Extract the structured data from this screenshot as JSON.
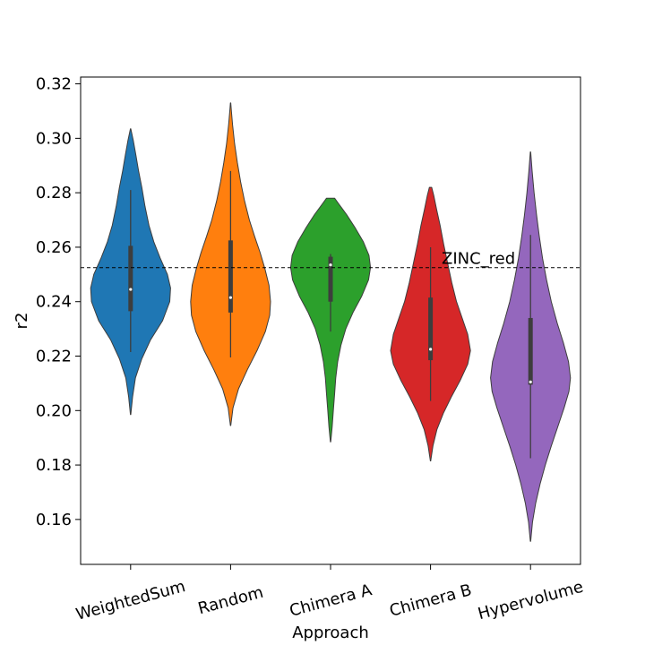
{
  "chart_data": {
    "type": "violin",
    "xlabel": "Approach",
    "ylabel": "r2",
    "ylim": [
      0.1435,
      0.3225
    ],
    "yticks": [
      "0.16",
      "0.18",
      "0.20",
      "0.22",
      "0.24",
      "0.26",
      "0.28",
      "0.30",
      "0.32"
    ],
    "ytick_values": [
      0.16,
      0.18,
      0.2,
      0.22,
      0.24,
      0.26,
      0.28,
      0.3,
      0.32
    ],
    "categories": [
      "WeightedSum",
      "Random",
      "Chimera A",
      "Chimera B",
      "Hypervolume"
    ],
    "xtick_rotation_deg": -15,
    "grid": false,
    "legend": "none",
    "reference_line": {
      "label": "ZINC_red",
      "value": 0.2525,
      "style": "dashed"
    },
    "series": [
      {
        "category": "WeightedSum",
        "color": "#1f77b4",
        "min": 0.1985,
        "max": 0.3035,
        "whisker_low": 0.2215,
        "whisker_high": 0.281,
        "q1": 0.2365,
        "median": 0.2445,
        "q3": 0.2605,
        "profile": [
          [
            0.1985,
            0.005
          ],
          [
            0.205,
            0.05
          ],
          [
            0.212,
            0.12
          ],
          [
            0.219,
            0.28
          ],
          [
            0.226,
            0.5
          ],
          [
            0.233,
            0.8
          ],
          [
            0.24,
            0.98
          ],
          [
            0.245,
            1.0
          ],
          [
            0.25,
            0.92
          ],
          [
            0.256,
            0.74
          ],
          [
            0.262,
            0.58
          ],
          [
            0.268,
            0.46
          ],
          [
            0.275,
            0.36
          ],
          [
            0.282,
            0.28
          ],
          [
            0.288,
            0.2
          ],
          [
            0.294,
            0.13
          ],
          [
            0.299,
            0.07
          ],
          [
            0.3035,
            0.005
          ]
        ]
      },
      {
        "category": "Random",
        "color": "#ff7f0e",
        "min": 0.1945,
        "max": 0.313,
        "whisker_low": 0.2195,
        "whisker_high": 0.288,
        "q1": 0.236,
        "median": 0.2415,
        "q3": 0.2625,
        "profile": [
          [
            0.1945,
            0.005
          ],
          [
            0.201,
            0.06
          ],
          [
            0.208,
            0.2
          ],
          [
            0.215,
            0.42
          ],
          [
            0.222,
            0.66
          ],
          [
            0.229,
            0.87
          ],
          [
            0.235,
            0.98
          ],
          [
            0.24,
            1.0
          ],
          [
            0.246,
            0.96
          ],
          [
            0.252,
            0.86
          ],
          [
            0.258,
            0.74
          ],
          [
            0.264,
            0.6
          ],
          [
            0.27,
            0.47
          ],
          [
            0.277,
            0.35
          ],
          [
            0.284,
            0.25
          ],
          [
            0.291,
            0.17
          ],
          [
            0.298,
            0.1
          ],
          [
            0.305,
            0.05
          ],
          [
            0.31,
            0.02
          ],
          [
            0.313,
            0.005
          ]
        ]
      },
      {
        "category": "Chimera A",
        "color": "#2ca02c",
        "min": 0.1885,
        "max": 0.278,
        "whisker_low": 0.229,
        "whisker_high": 0.2575,
        "q1": 0.24,
        "median": 0.2535,
        "q3": 0.2565,
        "profile": [
          [
            0.1885,
            0.005
          ],
          [
            0.194,
            0.04
          ],
          [
            0.2,
            0.07
          ],
          [
            0.206,
            0.1
          ],
          [
            0.212,
            0.13
          ],
          [
            0.218,
            0.18
          ],
          [
            0.224,
            0.26
          ],
          [
            0.23,
            0.38
          ],
          [
            0.236,
            0.56
          ],
          [
            0.242,
            0.78
          ],
          [
            0.248,
            0.95
          ],
          [
            0.2525,
            1.0
          ],
          [
            0.257,
            0.96
          ],
          [
            0.262,
            0.82
          ],
          [
            0.267,
            0.62
          ],
          [
            0.272,
            0.4
          ],
          [
            0.276,
            0.2
          ],
          [
            0.278,
            0.1
          ]
        ]
      },
      {
        "category": "Chimera B",
        "color": "#d62728",
        "min": 0.1815,
        "max": 0.282,
        "whisker_low": 0.2035,
        "whisker_high": 0.26,
        "q1": 0.2185,
        "median": 0.2225,
        "q3": 0.2415,
        "profile": [
          [
            0.1815,
            0.005
          ],
          [
            0.187,
            0.06
          ],
          [
            0.193,
            0.16
          ],
          [
            0.199,
            0.32
          ],
          [
            0.205,
            0.52
          ],
          [
            0.211,
            0.74
          ],
          [
            0.217,
            0.93
          ],
          [
            0.222,
            1.0
          ],
          [
            0.228,
            0.93
          ],
          [
            0.234,
            0.79
          ],
          [
            0.24,
            0.65
          ],
          [
            0.247,
            0.53
          ],
          [
            0.254,
            0.43
          ],
          [
            0.261,
            0.33
          ],
          [
            0.268,
            0.24
          ],
          [
            0.274,
            0.15
          ],
          [
            0.279,
            0.08
          ],
          [
            0.282,
            0.03
          ]
        ]
      },
      {
        "category": "Hypervolume",
        "color": "#9467bd",
        "min": 0.152,
        "max": 0.295,
        "whisker_low": 0.1825,
        "whisker_high": 0.2645,
        "q1": 0.2095,
        "median": 0.2105,
        "q3": 0.234,
        "profile": [
          [
            0.152,
            0.005
          ],
          [
            0.159,
            0.05
          ],
          [
            0.166,
            0.13
          ],
          [
            0.173,
            0.24
          ],
          [
            0.18,
            0.37
          ],
          [
            0.187,
            0.52
          ],
          [
            0.194,
            0.68
          ],
          [
            0.201,
            0.84
          ],
          [
            0.207,
            0.96
          ],
          [
            0.212,
            1.0
          ],
          [
            0.218,
            0.95
          ],
          [
            0.225,
            0.82
          ],
          [
            0.232,
            0.67
          ],
          [
            0.24,
            0.52
          ],
          [
            0.248,
            0.4
          ],
          [
            0.256,
            0.3
          ],
          [
            0.264,
            0.22
          ],
          [
            0.272,
            0.15
          ],
          [
            0.28,
            0.09
          ],
          [
            0.288,
            0.04
          ],
          [
            0.295,
            0.005
          ]
        ]
      }
    ]
  }
}
